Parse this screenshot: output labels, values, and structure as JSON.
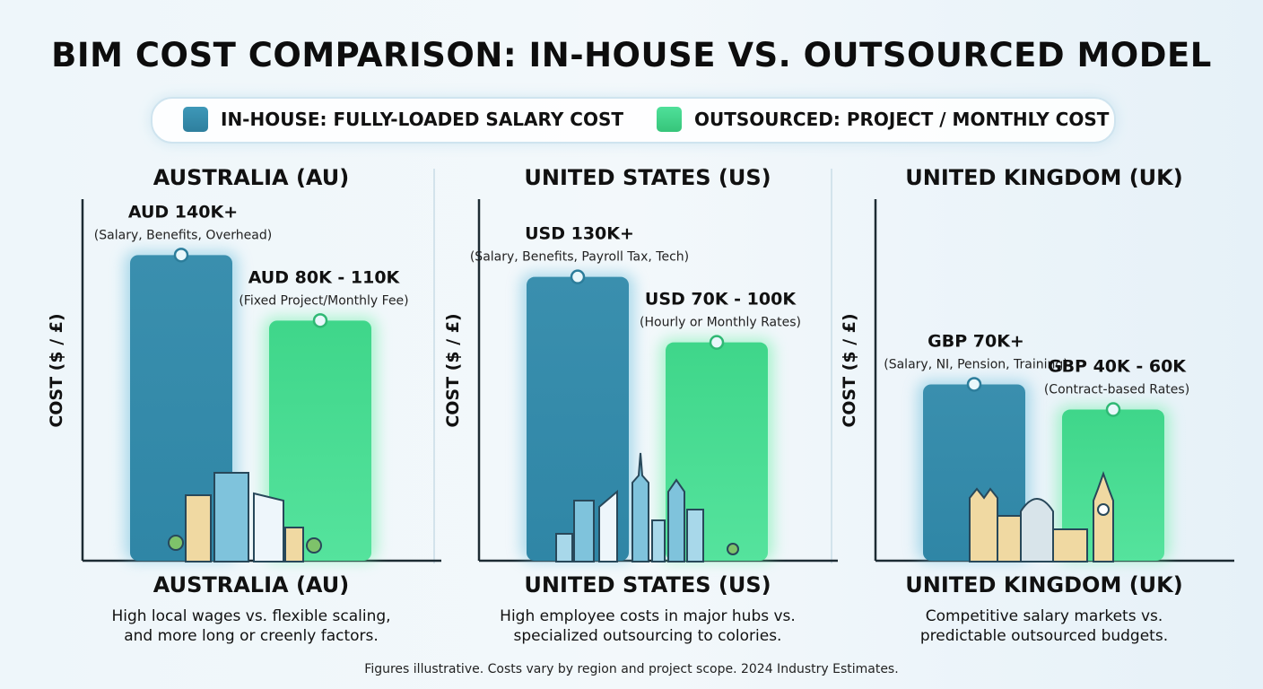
{
  "title": "BIM COST COMPARISON: IN-HOUSE VS. OUTSOURCED MODEL",
  "legend": {
    "in_house": {
      "label": "IN-HOUSE: FULLY-LOADED SALARY COST",
      "color": "#3a90ae"
    },
    "outsourced": {
      "label": "OUTSOURCED: PROJECT / MONTHLY COST",
      "color": "#45d98a"
    }
  },
  "chart_data": [
    {
      "type": "bar",
      "title": "AUSTRALIA (AU)",
      "ylabel": "COST ($ / £)",
      "categories": [
        "In-House",
        "Outsourced"
      ],
      "unit": "AUD K",
      "values": [
        140,
        110
      ],
      "bars": [
        {
          "label": "AUD 140K+",
          "sublabel": "(Salary, Benefits, Overhead)"
        },
        {
          "label": "AUD 80K - 110K",
          "sublabel": "(Fixed Project/Monthly Fee)"
        }
      ],
      "skyline": "sydney",
      "country_name": "AUSTRALIA (AU)",
      "description": [
        "High local wages vs. flexible scaling,",
        "and more long or creenly factors."
      ]
    },
    {
      "type": "bar",
      "title": "UNITED STATES (US)",
      "ylabel": "COST ($ / £)",
      "categories": [
        "In-House",
        "Outsourced"
      ],
      "unit": "USD K",
      "values": [
        130,
        100
      ],
      "bars": [
        {
          "label": "USD 130K+",
          "sublabel": "(Salary, Benefits, Payroll Tax, Tech)"
        },
        {
          "label": "USD 70K - 100K",
          "sublabel": "(Hourly or Monthly Rates)"
        }
      ],
      "skyline": "new-york",
      "country_name": "UNITED STATES (US)",
      "description": [
        "High employee costs in major hubs vs.",
        "specialized outsourcing to colories."
      ]
    },
    {
      "type": "bar",
      "title": "UNITED KINGDOM (UK)",
      "ylabel": "COST ($ / £)",
      "categories": [
        "In-House",
        "Outsourced"
      ],
      "unit": "GBP K",
      "values": [
        70,
        60
      ],
      "bars": [
        {
          "label": "GBP 70K+",
          "sublabel": "(Salary, NI, Pension, Training)"
        },
        {
          "label": "GBP 40K - 60K",
          "sublabel": "(Contract-based Rates)"
        }
      ],
      "skyline": "london",
      "country_name": "UNITED KINGDOM (UK)",
      "description": [
        "Competitive salary markets vs.",
        "predictable outsourced budgets."
      ]
    }
  ],
  "footnote": "Figures illustrative. Costs vary by region and project scope. 2024 Industry Estimates."
}
